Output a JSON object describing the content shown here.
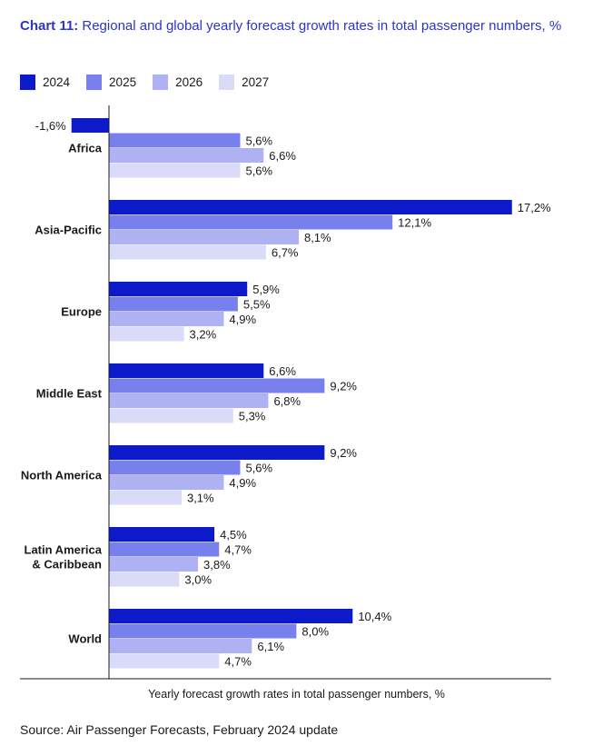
{
  "title_prefix": "Chart 11:",
  "title_text": "Regional and global yearly forecast growth rates in total passenger numbers, %",
  "source": "Source: Air Passenger Forecasts, February 2024 update",
  "colors": [
    "#0c1ac9",
    "#7880ee",
    "#aeb2f2",
    "#d9dbf8"
  ],
  "chart_data": {
    "type": "bar",
    "orientation": "horizontal",
    "title": "Regional and global yearly forecast growth rates in total passenger numbers, %",
    "xlabel": "Yearly forecast growth rates in total passenger numbers, %",
    "ylabel": "",
    "legend_position": "top-left",
    "grid": false,
    "xlim": [
      -2.0,
      18.5
    ],
    "categories": [
      [
        "Africa"
      ],
      [
        "Asia-Pacific"
      ],
      [
        "Europe"
      ],
      [
        "Middle East"
      ],
      [
        "North America"
      ],
      [
        "Latin America",
        "& Caribbean"
      ],
      [
        "World"
      ]
    ],
    "series": [
      {
        "name": "2024",
        "values": [
          -1.6,
          17.2,
          5.9,
          6.6,
          9.2,
          4.5,
          10.4
        ],
        "labels": [
          "-1,6%",
          "17,2%",
          "5,9%",
          "6,6%",
          "9,2%",
          "4,5%",
          "10,4%"
        ]
      },
      {
        "name": "2025",
        "values": [
          5.6,
          12.1,
          5.5,
          9.2,
          5.6,
          4.7,
          8.0
        ],
        "labels": [
          "5,6%",
          "12,1%",
          "5,5%",
          "9,2%",
          "5,6%",
          "4,7%",
          "8,0%"
        ]
      },
      {
        "name": "2026",
        "values": [
          6.6,
          8.1,
          4.9,
          6.8,
          4.9,
          3.8,
          6.1
        ],
        "labels": [
          "6,6%",
          "8,1%",
          "4,9%",
          "6,8%",
          "4,9%",
          "3,8%",
          "6,1%"
        ]
      },
      {
        "name": "2027",
        "values": [
          5.6,
          6.7,
          3.2,
          5.3,
          3.1,
          3.0,
          4.7
        ],
        "labels": [
          "5,6%",
          "6,7%",
          "3,2%",
          "5,3%",
          "3,1%",
          "3,0%",
          "4,7%"
        ]
      }
    ]
  }
}
